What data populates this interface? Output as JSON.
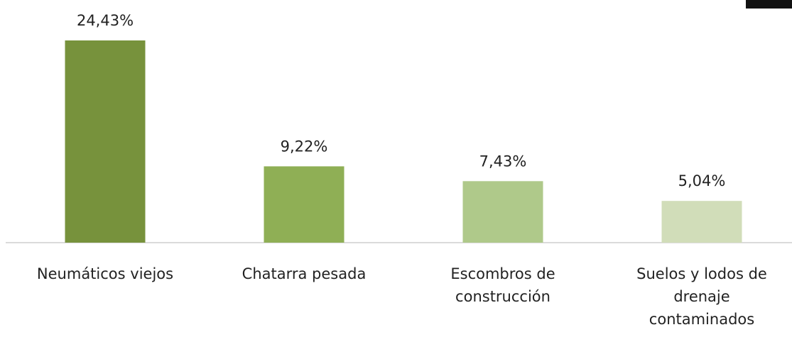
{
  "chart_data": {
    "type": "bar",
    "categories": [
      "Neumáticos viejos",
      "Chatarra pesada",
      "Escombros de construcción",
      "Suelos y lodos de drenaje contaminados"
    ],
    "values": [
      24.43,
      9.22,
      7.43,
      5.04
    ],
    "value_labels": [
      "24,43%",
      "9,22%",
      "7,43%",
      "5,04%"
    ],
    "colors": [
      "#77923c",
      "#8faf55",
      "#afc98a",
      "#d1ddb9"
    ]
  }
}
